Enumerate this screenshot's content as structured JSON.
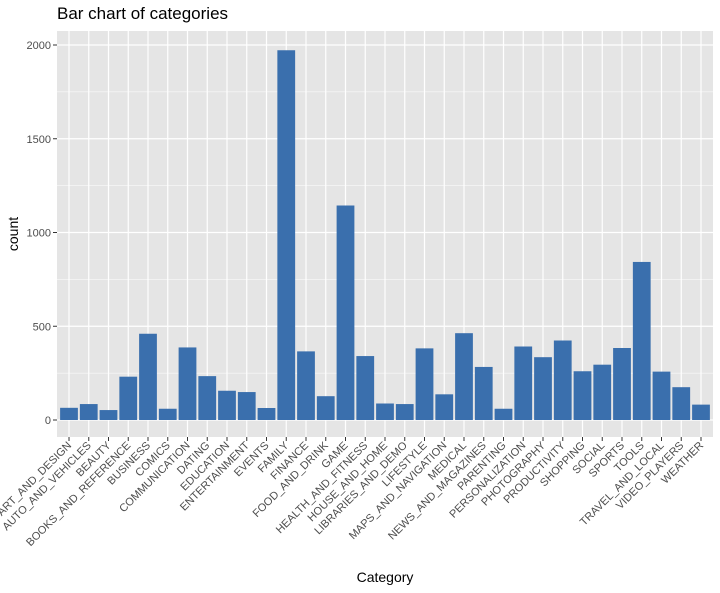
{
  "chart_data": {
    "type": "bar",
    "title": "Bar chart of categories",
    "xlabel": "Category",
    "ylabel": "count",
    "ylim": [
      0,
      2000
    ],
    "yticks": [
      0,
      500,
      1000,
      1500,
      2000
    ],
    "grid": true,
    "colors": {
      "bar": "#3a6fad",
      "panel": "#e5e5e5",
      "grid": "#ffffff"
    },
    "categories": [
      "ART_AND_DESIGN",
      "AUTO_AND_VEHICLES",
      "BEAUTY",
      "BOOKS_AND_REFERENCE",
      "BUSINESS",
      "COMICS",
      "COMMUNICATION",
      "DATING",
      "EDUCATION",
      "ENTERTAINMENT",
      "EVENTS",
      "FAMILY",
      "FINANCE",
      "FOOD_AND_DRINK",
      "GAME",
      "HEALTH_AND_FITNESS",
      "HOUSE_AND_HOME",
      "LIBRARIES_AND_DEMO",
      "LIFESTYLE",
      "MAPS_AND_NAVIGATION",
      "MEDICAL",
      "NEWS_AND_MAGAZINES",
      "PARENTING",
      "PERSONALIZATION",
      "PHOTOGRAPHY",
      "PRODUCTIVITY",
      "SHOPPING",
      "SOCIAL",
      "SPORTS",
      "TOOLS",
      "TRAVEL_AND_LOCAL",
      "VIDEO_PLAYERS",
      "WEATHER"
    ],
    "values": [
      65,
      85,
      53,
      231,
      460,
      60,
      387,
      234,
      156,
      149,
      64,
      1972,
      366,
      127,
      1144,
      341,
      88,
      85,
      382,
      137,
      463,
      283,
      60,
      392,
      335,
      424,
      260,
      295,
      384,
      843,
      258,
      175,
      82
    ]
  }
}
